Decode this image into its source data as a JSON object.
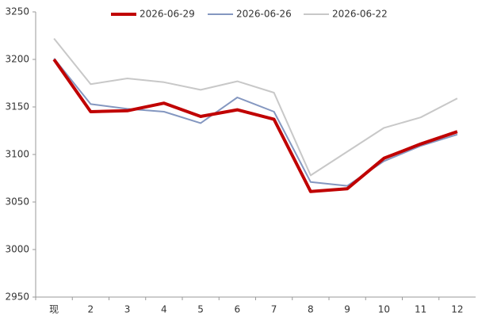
{
  "chart_data": {
    "type": "line",
    "categories": [
      "现",
      "2",
      "3",
      "4",
      "5",
      "6",
      "7",
      "8",
      "9",
      "10",
      "11",
      "12"
    ],
    "series": [
      {
        "name": "2026-06-29",
        "color": "#c00000",
        "values": [
          3200,
          3145,
          3146,
          3154,
          3140,
          3147,
          3137,
          3061,
          3064,
          3096,
          3111,
          3124
        ]
      },
      {
        "name": "2026-06-26",
        "color": "#8497c0",
        "values": [
          3201,
          3153,
          3148,
          3145,
          3133,
          3160,
          3145,
          3071,
          3067,
          3093,
          3109,
          3121
        ]
      },
      {
        "name": "2026-06-22",
        "color": "#c8c8c8",
        "values": [
          3222,
          3174,
          3180,
          3176,
          3168,
          3177,
          3165,
          3078,
          3103,
          3128,
          3139,
          3159
        ]
      }
    ],
    "ylim": [
      2950,
      3250
    ],
    "yticks": [
      2950,
      3000,
      3050,
      3100,
      3150,
      3200,
      3250
    ],
    "grid": false
  }
}
